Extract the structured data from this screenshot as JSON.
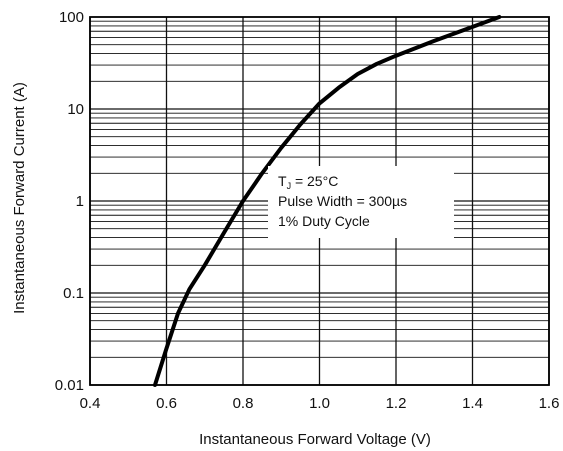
{
  "chart_data": {
    "type": "line",
    "title": "",
    "xlabel": "Instantaneous Forward Voltage (V)",
    "ylabel": "Instantaneous Forward Current (A)",
    "xlim": [
      0.4,
      1.6
    ],
    "ylim": [
      0.01,
      100
    ],
    "yscale": "log",
    "grid": true,
    "x_ticks": [
      "0.4",
      "0.6",
      "0.8",
      "1.0",
      "1.2",
      "1.4",
      "1.6"
    ],
    "y_ticks": [
      "0.01",
      "0.1",
      "1",
      "10",
      "100"
    ],
    "series": [
      {
        "x": [
          0.57,
          0.6,
          0.63,
          0.66,
          0.7,
          0.75,
          0.8,
          0.85,
          0.9,
          0.95,
          1.0,
          1.05,
          1.1,
          1.15,
          1.2,
          1.3,
          1.4,
          1.47
        ],
        "y": [
          0.01,
          0.025,
          0.06,
          0.11,
          0.2,
          0.45,
          1.0,
          2.0,
          3.8,
          6.8,
          11.5,
          17,
          24,
          31,
          38,
          55,
          78,
          100
        ]
      }
    ],
    "annotation": {
      "line1_T": "T",
      "line1_sub": "J",
      "line1_rest": " = 25°C",
      "line2": "Pulse Width = 300µs",
      "line3": "1% Duty Cycle"
    },
    "colors": {
      "line": "#000000",
      "grid": "#111111",
      "background": "#ffffff"
    }
  }
}
